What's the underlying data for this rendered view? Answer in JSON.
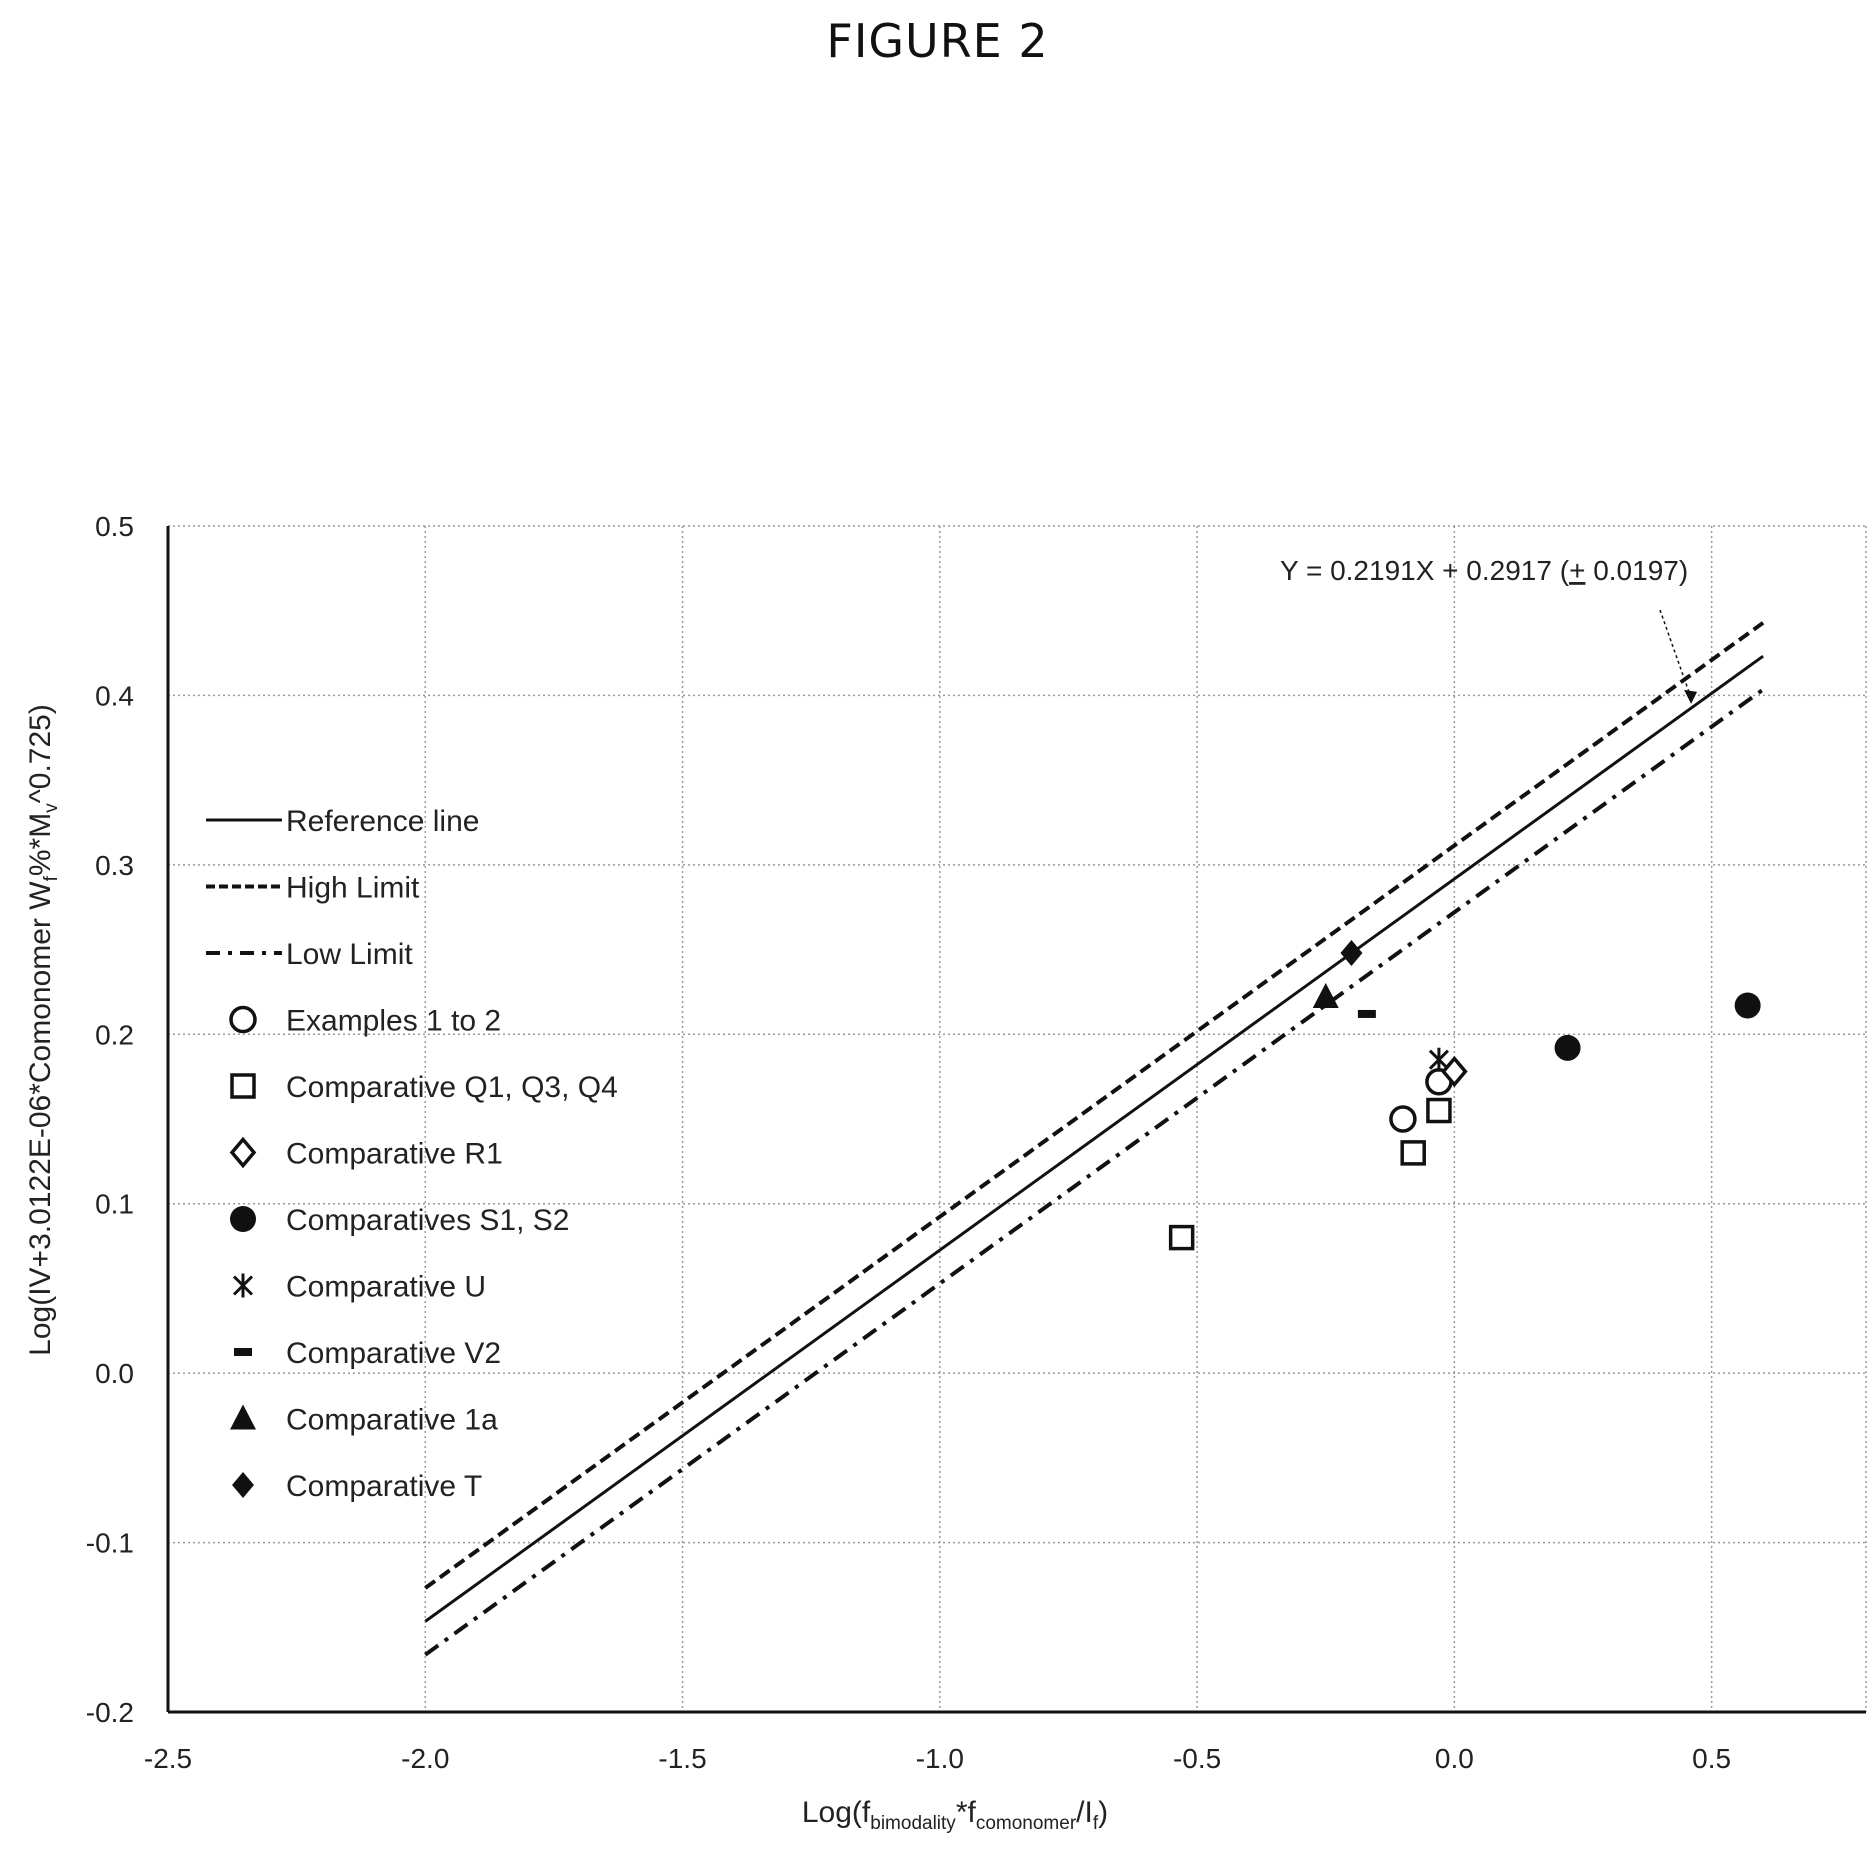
{
  "figure_title": "FIGURE 2",
  "chart_data": {
    "type": "scatter",
    "xlabel": {
      "base": "Log(f",
      "sub1": "bimodality",
      "mid1": "*f",
      "sub2": "comonomer",
      "mid2": "/I",
      "sub3": "f",
      "end": ")"
    },
    "ylabel": {
      "part1": "Log(IV+3.0122E-06*Comonomer W",
      "sub1": "f",
      "part2": "%*M",
      "sub2": "v",
      "part3": "^0.725)"
    },
    "xlim": [
      -2.5,
      0.8
    ],
    "ylim": [
      -0.2,
      0.5
    ],
    "xticks": [
      -2.5,
      -2.0,
      -1.5,
      -1.0,
      -0.5,
      0.0,
      0.5
    ],
    "xtick_labels": [
      "-2.5",
      "-2.0",
      "-1.5",
      "-1.0",
      "-0.5",
      "0.0",
      "0.5"
    ],
    "yticks": [
      -0.2,
      -0.1,
      0.0,
      0.1,
      0.2,
      0.3,
      0.4,
      0.5
    ],
    "ytick_labels": [
      "-0.2",
      "-0.1",
      "0.0",
      "0.1",
      "0.2",
      "0.3",
      "0.4",
      "0.5"
    ],
    "grid": true,
    "legend_position": "left",
    "lines": [
      {
        "name": "Reference line",
        "style": "solid",
        "slope": 0.2191,
        "intercept": 0.2917,
        "x_range": [
          -2.0,
          0.6
        ]
      },
      {
        "name": "High Limit",
        "style": "dashed",
        "slope": 0.2191,
        "intercept": 0.3114,
        "x_range": [
          -2.0,
          0.6
        ]
      },
      {
        "name": "Low Limit",
        "style": "dashdot",
        "slope": 0.2191,
        "intercept": 0.272,
        "x_range": [
          -2.0,
          0.6
        ]
      }
    ],
    "series": [
      {
        "name": "Examples 1 to 2",
        "marker": "open-circle",
        "points": [
          [
            -0.1,
            0.15
          ],
          [
            -0.03,
            0.172
          ]
        ]
      },
      {
        "name": "Comparative Q1, Q3, Q4",
        "marker": "open-square",
        "points": [
          [
            -0.53,
            0.08
          ],
          [
            -0.08,
            0.13
          ],
          [
            -0.03,
            0.155
          ]
        ]
      },
      {
        "name": "Comparative R1",
        "marker": "open-diamond",
        "points": [
          [
            0.0,
            0.178
          ]
        ]
      },
      {
        "name": "Comparatives S1, S2",
        "marker": "filled-circle",
        "points": [
          [
            0.22,
            0.192
          ],
          [
            0.57,
            0.217
          ]
        ]
      },
      {
        "name": "Comparative U",
        "marker": "asterisk",
        "points": [
          [
            -0.03,
            0.185
          ]
        ]
      },
      {
        "name": "Comparative V2",
        "marker": "dash",
        "points": [
          [
            -0.17,
            0.212
          ]
        ]
      },
      {
        "name": "Comparative 1a",
        "marker": "filled-triangle",
        "points": [
          [
            -0.25,
            0.222
          ]
        ]
      },
      {
        "name": "Comparative T",
        "marker": "filled-diamond",
        "points": [
          [
            -0.2,
            0.248
          ]
        ]
      }
    ],
    "annotations": [
      {
        "text": "Y = 0.2191X + 0.2917 (",
        "pm": "+",
        "text_end": " 0.0197)",
        "arrow_to": [
          0.46,
          0.395
        ]
      }
    ]
  }
}
